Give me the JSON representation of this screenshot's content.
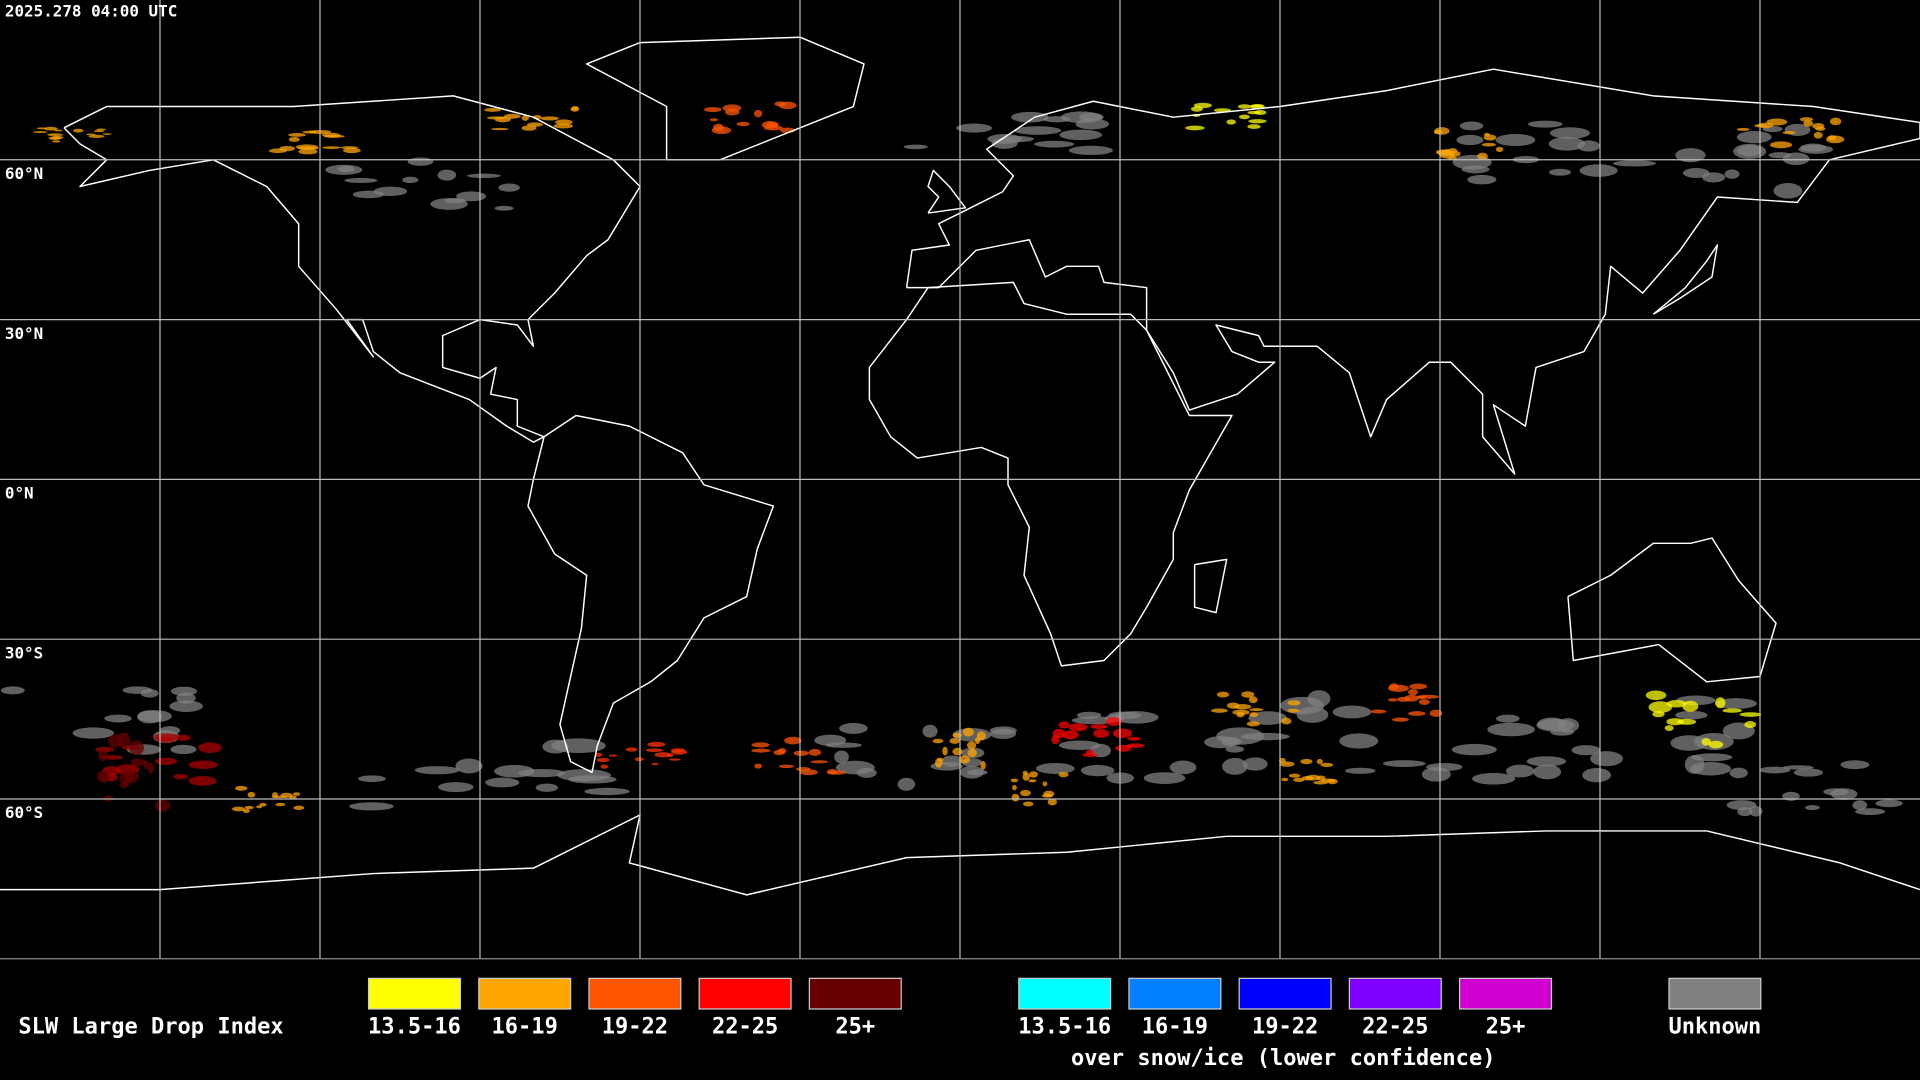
{
  "timestamp": "2025.278 04:00 UTC",
  "lat_labels": [
    "60°N",
    "30°N",
    "0°N",
    "30°S",
    "60°S"
  ],
  "legend": {
    "title": "SLW Large Drop Index",
    "items": [
      {
        "label": "13.5-16",
        "color": "#ffff00"
      },
      {
        "label": "16-19",
        "color": "#ffa500"
      },
      {
        "label": "19-22",
        "color": "#ff5500"
      },
      {
        "label": "22-25",
        "color": "#ff0000"
      },
      {
        "label": "25+",
        "color": "#660000"
      }
    ],
    "snow_items": [
      {
        "label": "13.5-16",
        "color": "#00ffff"
      },
      {
        "label": "16-19",
        "color": "#0080ff"
      },
      {
        "label": "19-22",
        "color": "#0000ff"
      },
      {
        "label": "22-25",
        "color": "#8000ff"
      },
      {
        "label": "25+",
        "color": "#d000d0"
      }
    ],
    "snow_caption": "over snow/ice (lower confidence)",
    "unknown": {
      "label": "Unknown",
      "color": "#808080"
    }
  }
}
